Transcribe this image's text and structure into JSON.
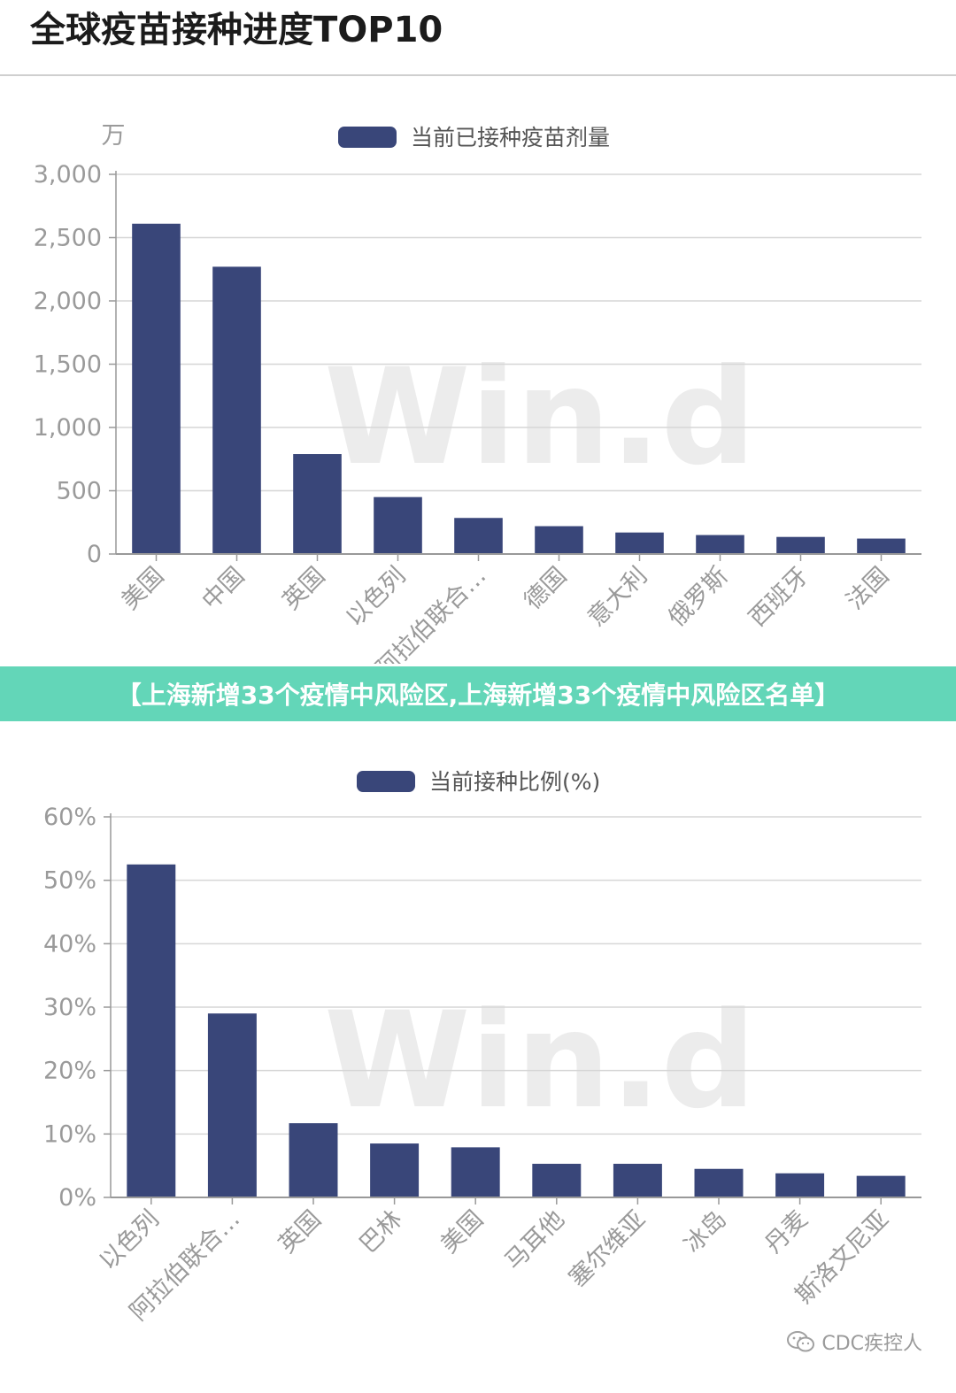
{
  "page": {
    "title": "全球疫苗接种进度TOP10",
    "banner": "【上海新增33个疫情中风险区,上海新增33个疫情中风险区名单】",
    "credit": "CDC疾控人",
    "credit_icon": "wechat-icon",
    "watermark": "Win.d"
  },
  "colors": {
    "bar": "#394679",
    "grid": "#d6d6d6",
    "axis": "#999999",
    "tick_text": "#9a9a9a",
    "banner": "#63d6b8",
    "watermark": "#ececec"
  },
  "chart_data": [
    {
      "type": "bar",
      "title": "",
      "ylabel": "万",
      "xlabel": "",
      "legend": {
        "position": "top-center"
      },
      "grid": true,
      "ylim": [
        0,
        3000
      ],
      "yticks": [
        0,
        500,
        1000,
        1500,
        2000,
        2500,
        3000
      ],
      "ytick_labels": [
        "0",
        "500",
        "1,000",
        "1,500",
        "2,000",
        "2,500",
        "3,000"
      ],
      "categories": [
        "美国",
        "中国",
        "英国",
        "以色列",
        "阿拉伯联合…",
        "德国",
        "意大利",
        "俄罗斯",
        "西班牙",
        "法国"
      ],
      "series": [
        {
          "name": "当前已接种疫苗剂量",
          "values": [
            2610,
            2270,
            790,
            450,
            285,
            220,
            170,
            150,
            135,
            122
          ]
        }
      ]
    },
    {
      "type": "bar",
      "title": "",
      "ylabel": "",
      "xlabel": "",
      "legend": {
        "position": "top-center"
      },
      "grid": true,
      "ylim": [
        0,
        60
      ],
      "yticks": [
        0,
        10,
        20,
        30,
        40,
        50,
        60
      ],
      "ytick_labels": [
        "0%",
        "10%",
        "20%",
        "30%",
        "40%",
        "50%",
        "60%"
      ],
      "categories": [
        "以色列",
        "阿拉伯联合…",
        "英国",
        "巴林",
        "美国",
        "马耳他",
        "塞尔维亚",
        "冰岛",
        "丹麦",
        "斯洛文尼亚"
      ],
      "series": [
        {
          "name": "当前接种比例(%)",
          "values": [
            52.5,
            29.0,
            11.7,
            8.5,
            7.9,
            5.3,
            5.3,
            4.5,
            3.8,
            3.4
          ]
        }
      ]
    }
  ]
}
